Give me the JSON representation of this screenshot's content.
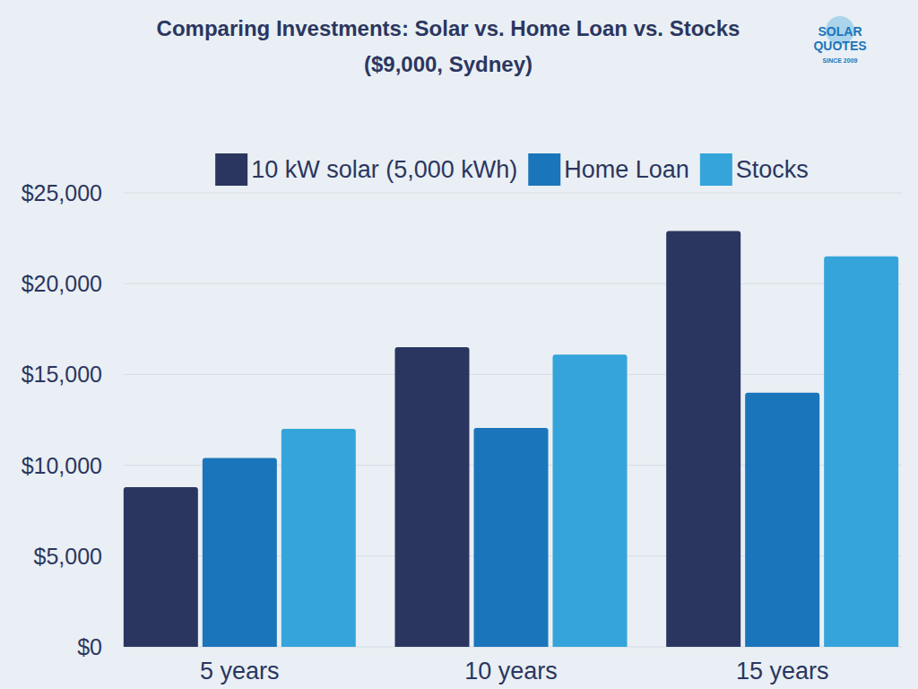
{
  "chart_data": {
    "type": "bar",
    "title": "Comparing Investments: Solar vs. Home Loan vs. Stocks",
    "subtitle": "($9,000, Sydney)",
    "annotations": [
      "SOLAR",
      "QUOTES",
      "SINCE 2009"
    ],
    "categories": [
      "5 years",
      "10 years",
      "15 years"
    ],
    "series": [
      {
        "name": "10 kW solar (5,000 kWh)",
        "color": "#2b3660",
        "values": [
          8800,
          16500,
          22900
        ]
      },
      {
        "name": "Home Loan",
        "color": "#1b75bb",
        "values": [
          10400,
          12050,
          14000
        ]
      },
      {
        "name": "Stocks",
        "color": "#35a4db",
        "values": [
          12000,
          16100,
          21500
        ]
      }
    ],
    "ylim": [
      0,
      25000
    ],
    "yticks": [
      {
        "value": 0,
        "label": "$0"
      },
      {
        "value": 5000,
        "label": "$5,000"
      },
      {
        "value": 10000,
        "label": "$10,000"
      },
      {
        "value": 15000,
        "label": "$15,000"
      },
      {
        "value": 20000,
        "label": "$20,000"
      },
      {
        "value": 25000,
        "label": "$25,000"
      }
    ],
    "grid": true,
    "legend": "top"
  }
}
